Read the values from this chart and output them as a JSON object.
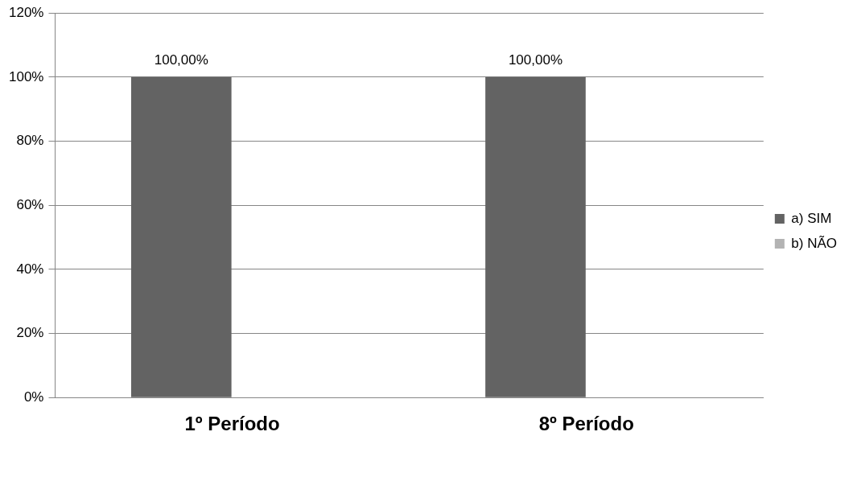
{
  "chart_data": {
    "type": "bar",
    "categories": [
      "1º Período",
      "8º Período"
    ],
    "series": [
      {
        "name": "a) SIM",
        "color": "#636363",
        "values": [
          100,
          100
        ],
        "value_labels": [
          "100,00%",
          "100,00%"
        ]
      },
      {
        "name": "b) NÃO",
        "color": "#b3b3b3",
        "values": [
          0,
          0
        ],
        "value_labels": [
          null,
          null
        ]
      }
    ],
    "ylim": [
      0,
      120
    ],
    "yticks": [
      {
        "value": 0,
        "label": "0%"
      },
      {
        "value": 20,
        "label": "20%"
      },
      {
        "value": 40,
        "label": "40%"
      },
      {
        "value": 60,
        "label": "60%"
      },
      {
        "value": 80,
        "label": "80%"
      },
      {
        "value": 100,
        "label": "100%"
      },
      {
        "value": 120,
        "label": "120%"
      }
    ],
    "grid": "y",
    "legend": "right"
  }
}
